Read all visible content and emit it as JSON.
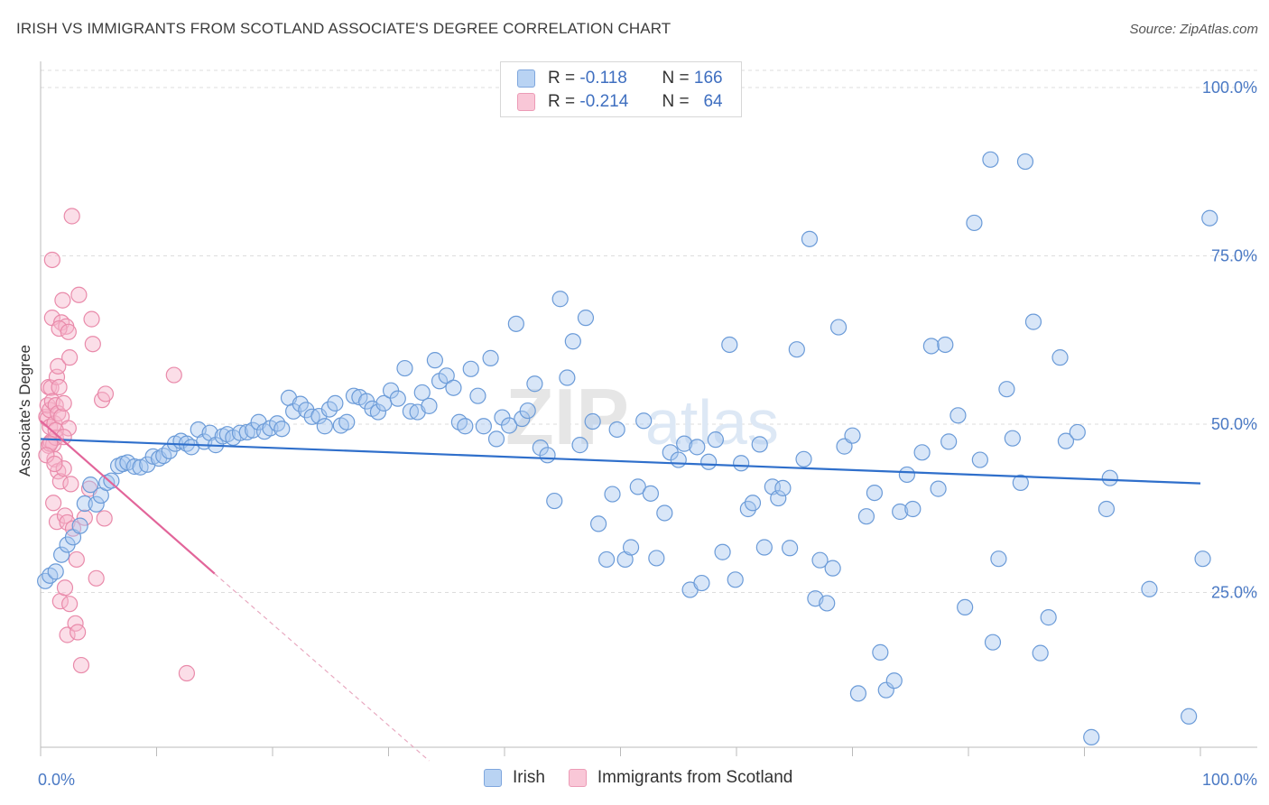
{
  "header": {
    "title": "IRISH VS IMMIGRANTS FROM SCOTLAND ASSOCIATE'S DEGREE CORRELATION CHART",
    "source": "Source: ZipAtlas.com"
  },
  "watermark": "ZIPatlas",
  "legend_top": {
    "rows": [
      {
        "r_label": "R =",
        "r_value": "-0.118",
        "n_label": "N =",
        "n_value": "166"
      },
      {
        "r_label": "R =",
        "r_value": "-0.214",
        "n_label": "N =",
        "n_value": "64"
      }
    ]
  },
  "legend_bottom": {
    "items": [
      "Irish",
      "Immigrants from Scotland"
    ]
  },
  "colors": {
    "irish_fill": "#a9c8f0",
    "irish_stroke": "#6b9bd8",
    "irish_line": "#2f6fcb",
    "scot_fill": "#f6b6cb",
    "scot_stroke": "#e98aaa",
    "scot_line": "#e2659a",
    "grid": "#dddddd",
    "tick_label": "#4a79c4"
  },
  "chart_data": {
    "type": "scatter",
    "title": "IRISH VS IMMIGRANTS FROM SCOTLAND ASSOCIATE'S DEGREE CORRELATION CHART",
    "ylabel": "Associate's Degree",
    "xlabel": "",
    "xlim": [
      0,
      100
    ],
    "ylim": [
      0,
      100
    ],
    "x_tick_labels": [
      "0.0%",
      "100.0%"
    ],
    "y_ticks": [
      25,
      50,
      75,
      100
    ],
    "y_tick_labels": [
      "25.0%",
      "50.0%",
      "75.0%",
      "100.0%"
    ],
    "grid": true,
    "legend_position": "top-center",
    "series": [
      {
        "name": "Irish",
        "r": -0.118,
        "n": 166,
        "trend": {
          "x": [
            0,
            100
          ],
          "y": [
            47.8,
            41.2
          ]
        },
        "points": [
          [
            0.4,
            26.7
          ],
          [
            0.8,
            27.5
          ],
          [
            1.3,
            28.1
          ],
          [
            1.8,
            30.6
          ],
          [
            2.3,
            32.1
          ],
          [
            2.8,
            33.2
          ],
          [
            3.4,
            34.9
          ],
          [
            3.8,
            38.2
          ],
          [
            4.3,
            41.0
          ],
          [
            4.8,
            38.1
          ],
          [
            5.2,
            39.4
          ],
          [
            5.7,
            41.3
          ],
          [
            6.1,
            41.6
          ],
          [
            6.7,
            43.8
          ],
          [
            7.1,
            44.1
          ],
          [
            7.5,
            44.3
          ],
          [
            8.1,
            43.7
          ],
          [
            8.6,
            43.6
          ],
          [
            9.2,
            44.0
          ],
          [
            9.7,
            45.2
          ],
          [
            10.2,
            44.9
          ],
          [
            10.6,
            45.3
          ],
          [
            11.1,
            46.0
          ],
          [
            11.6,
            47.1
          ],
          [
            12.1,
            47.5
          ],
          [
            12.6,
            47.1
          ],
          [
            13.0,
            46.6
          ],
          [
            13.6,
            49.2
          ],
          [
            14.1,
            47.4
          ],
          [
            14.6,
            48.7
          ],
          [
            15.1,
            46.9
          ],
          [
            15.7,
            48.2
          ],
          [
            16.1,
            48.5
          ],
          [
            16.6,
            48.0
          ],
          [
            17.2,
            48.7
          ],
          [
            17.8,
            48.8
          ],
          [
            18.3,
            49.1
          ],
          [
            18.8,
            50.3
          ],
          [
            19.3,
            48.9
          ],
          [
            19.8,
            49.4
          ],
          [
            20.4,
            50.1
          ],
          [
            20.8,
            49.3
          ],
          [
            21.4,
            53.9
          ],
          [
            21.8,
            51.9
          ],
          [
            22.4,
            53.0
          ],
          [
            22.9,
            52.1
          ],
          [
            23.4,
            51.1
          ],
          [
            24.0,
            51.2
          ],
          [
            24.5,
            49.7
          ],
          [
            24.9,
            52.2
          ],
          [
            25.4,
            53.1
          ],
          [
            25.9,
            49.8
          ],
          [
            26.4,
            50.3
          ],
          [
            27.0,
            54.2
          ],
          [
            27.5,
            54.0
          ],
          [
            28.1,
            53.4
          ],
          [
            28.6,
            52.3
          ],
          [
            29.1,
            51.8
          ],
          [
            29.6,
            53.1
          ],
          [
            30.2,
            55.0
          ],
          [
            30.8,
            53.8
          ],
          [
            31.4,
            58.3
          ],
          [
            31.9,
            51.9
          ],
          [
            32.5,
            51.8
          ],
          [
            32.9,
            54.7
          ],
          [
            33.5,
            52.7
          ],
          [
            34.0,
            59.5
          ],
          [
            34.4,
            56.4
          ],
          [
            35.0,
            57.2
          ],
          [
            35.6,
            55.4
          ],
          [
            36.1,
            50.3
          ],
          [
            36.6,
            49.7
          ],
          [
            37.1,
            58.2
          ],
          [
            37.7,
            54.2
          ],
          [
            38.2,
            49.7
          ],
          [
            38.8,
            59.8
          ],
          [
            39.3,
            47.8
          ],
          [
            39.8,
            51.0
          ],
          [
            40.4,
            49.8
          ],
          [
            41.0,
            64.9
          ],
          [
            41.5,
            50.8
          ],
          [
            42.0,
            52.0
          ],
          [
            42.6,
            56.0
          ],
          [
            43.1,
            46.5
          ],
          [
            43.7,
            45.4
          ],
          [
            44.3,
            38.6
          ],
          [
            44.8,
            68.6
          ],
          [
            45.4,
            56.9
          ],
          [
            45.9,
            62.3
          ],
          [
            46.5,
            46.9
          ],
          [
            47.0,
            65.8
          ],
          [
            47.6,
            50.4
          ],
          [
            48.1,
            35.2
          ],
          [
            48.8,
            29.9
          ],
          [
            49.3,
            39.6
          ],
          [
            49.7,
            49.2
          ],
          [
            50.4,
            29.9
          ],
          [
            50.9,
            31.7
          ],
          [
            51.5,
            40.7
          ],
          [
            52.0,
            50.5
          ],
          [
            52.6,
            39.7
          ],
          [
            53.1,
            30.1
          ],
          [
            53.8,
            36.8
          ],
          [
            54.3,
            45.8
          ],
          [
            55.0,
            44.7
          ],
          [
            55.5,
            47.1
          ],
          [
            56.0,
            25.4
          ],
          [
            56.6,
            46.6
          ],
          [
            57.0,
            26.4
          ],
          [
            57.6,
            44.4
          ],
          [
            58.2,
            47.7
          ],
          [
            58.8,
            31.0
          ],
          [
            59.4,
            61.8
          ],
          [
            59.9,
            26.9
          ],
          [
            60.4,
            44.2
          ],
          [
            61.0,
            37.4
          ],
          [
            61.4,
            38.3
          ],
          [
            62.0,
            47.0
          ],
          [
            62.4,
            31.7
          ],
          [
            63.1,
            40.7
          ],
          [
            63.6,
            39.0
          ],
          [
            64.0,
            40.5
          ],
          [
            64.6,
            31.6
          ],
          [
            65.2,
            61.1
          ],
          [
            65.8,
            44.8
          ],
          [
            66.3,
            77.5
          ],
          [
            66.8,
            24.1
          ],
          [
            67.2,
            29.8
          ],
          [
            67.8,
            23.4
          ],
          [
            68.3,
            28.6
          ],
          [
            68.8,
            64.4
          ],
          [
            69.3,
            46.7
          ],
          [
            70.0,
            48.3
          ],
          [
            70.5,
            10.0
          ],
          [
            71.2,
            36.3
          ],
          [
            71.9,
            39.8
          ],
          [
            72.4,
            16.1
          ],
          [
            72.9,
            10.5
          ],
          [
            73.6,
            11.9
          ],
          [
            74.1,
            37.0
          ],
          [
            74.7,
            42.5
          ],
          [
            75.2,
            37.4
          ],
          [
            76.0,
            45.8
          ],
          [
            76.8,
            61.6
          ],
          [
            77.4,
            40.4
          ],
          [
            78.0,
            61.8
          ],
          [
            78.3,
            47.4
          ],
          [
            79.1,
            51.3
          ],
          [
            79.7,
            22.8
          ],
          [
            80.5,
            79.9
          ],
          [
            81.0,
            44.7
          ],
          [
            81.9,
            89.3
          ],
          [
            82.1,
            17.6
          ],
          [
            82.6,
            30.0
          ],
          [
            83.3,
            55.2
          ],
          [
            83.8,
            47.9
          ],
          [
            84.5,
            41.3
          ],
          [
            84.9,
            89.0
          ],
          [
            85.6,
            65.2
          ],
          [
            86.2,
            16.0
          ],
          [
            86.9,
            21.3
          ],
          [
            87.9,
            59.9
          ],
          [
            88.4,
            47.5
          ],
          [
            89.4,
            48.8
          ],
          [
            90.6,
            3.5
          ],
          [
            91.9,
            37.4
          ],
          [
            92.2,
            42.0
          ],
          [
            95.6,
            25.5
          ],
          [
            99.0,
            6.6
          ],
          [
            100.2,
            30.0
          ],
          [
            100.8,
            80.6
          ]
        ]
      },
      {
        "name": "Immigrants from Scotland",
        "r": -0.214,
        "n": 64,
        "trend_solid": {
          "x": [
            0,
            15
          ],
          "y": [
            50.5,
            27.8
          ]
        },
        "trend_dashed": {
          "x": [
            15,
            33.5
          ],
          "y": [
            27.8,
            0
          ]
        },
        "points": [
          [
            0.5,
            51.1
          ],
          [
            0.6,
            50.8
          ],
          [
            0.6,
            52.8
          ],
          [
            0.7,
            55.5
          ],
          [
            0.7,
            46.8
          ],
          [
            0.8,
            49.6
          ],
          [
            0.8,
            52.1
          ],
          [
            0.9,
            55.4
          ],
          [
            0.9,
            47.4
          ],
          [
            1.0,
            65.8
          ],
          [
            1.0,
            53.4
          ],
          [
            1.1,
            38.3
          ],
          [
            1.1,
            47.0
          ],
          [
            1.2,
            44.8
          ],
          [
            1.2,
            50.1
          ],
          [
            1.3,
            48.0
          ],
          [
            1.3,
            52.8
          ],
          [
            1.4,
            57.0
          ],
          [
            1.4,
            35.5
          ],
          [
            1.5,
            58.6
          ],
          [
            1.5,
            51.6
          ],
          [
            1.5,
            43.0
          ],
          [
            1.6,
            55.5
          ],
          [
            1.7,
            41.5
          ],
          [
            1.7,
            23.7
          ],
          [
            1.8,
            65.1
          ],
          [
            1.8,
            51.1
          ],
          [
            1.9,
            68.4
          ],
          [
            2.0,
            43.4
          ],
          [
            2.0,
            53.1
          ],
          [
            2.1,
            36.4
          ],
          [
            2.1,
            25.7
          ],
          [
            2.2,
            64.5
          ],
          [
            2.3,
            35.4
          ],
          [
            2.3,
            18.7
          ],
          [
            2.4,
            49.4
          ],
          [
            2.5,
            23.3
          ],
          [
            2.5,
            59.9
          ],
          [
            2.6,
            41.1
          ],
          [
            2.7,
            80.9
          ],
          [
            2.8,
            34.5
          ],
          [
            3.0,
            20.4
          ],
          [
            3.1,
            29.9
          ],
          [
            3.2,
            19.1
          ],
          [
            3.3,
            69.2
          ],
          [
            3.5,
            14.2
          ],
          [
            3.8,
            36.1
          ],
          [
            4.2,
            40.4
          ],
          [
            4.4,
            65.6
          ],
          [
            4.5,
            61.9
          ],
          [
            4.8,
            27.1
          ],
          [
            5.3,
            53.6
          ],
          [
            5.5,
            36.0
          ],
          [
            5.6,
            54.5
          ],
          [
            12.6,
            13.0
          ],
          [
            11.5,
            57.3
          ],
          [
            1.0,
            74.4
          ],
          [
            1.6,
            64.2
          ],
          [
            1.3,
            49.1
          ],
          [
            0.8,
            47.1
          ],
          [
            2.4,
            63.7
          ],
          [
            0.5,
            45.4
          ],
          [
            1.2,
            44.1
          ],
          [
            2.0,
            48.1
          ]
        ]
      }
    ]
  }
}
